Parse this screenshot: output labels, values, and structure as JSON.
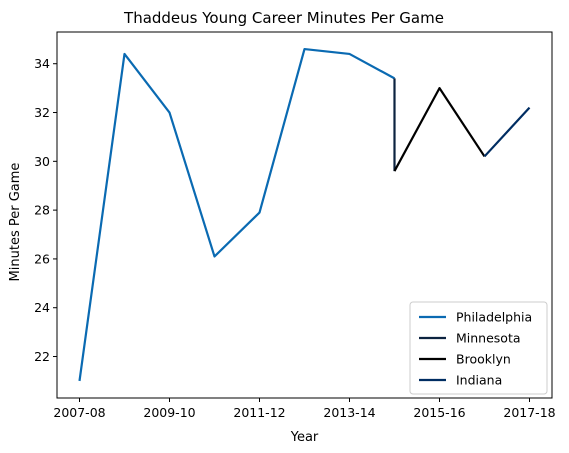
{
  "chart_data": {
    "type": "line",
    "title": "Thaddeus Young Career Minutes Per Game",
    "xlabel": "Year",
    "ylabel": "Minutes Per Game",
    "x_tick_labels": [
      "2007-08",
      "2009-10",
      "2011-12",
      "2013-14",
      "2015-16",
      "2017-18"
    ],
    "x_tick_positions": [
      0,
      2,
      4,
      6,
      8,
      10
    ],
    "xlim": [
      -0.5,
      10.5
    ],
    "y_ticks": [
      22,
      24,
      26,
      28,
      30,
      32,
      34
    ],
    "ylim": [
      20.3,
      35.3
    ],
    "grid": false,
    "legend_position": "lower right",
    "series": [
      {
        "name": "Philadelphia",
        "color": "#0a6ab2",
        "points": [
          [
            0,
            21.0
          ],
          [
            1,
            34.4
          ],
          [
            2,
            32.0
          ],
          [
            3,
            26.1
          ],
          [
            4,
            27.9
          ],
          [
            5,
            34.6
          ],
          [
            6,
            34.4
          ],
          [
            7,
            33.4
          ]
        ]
      },
      {
        "name": "Minnesota",
        "color": "#0c2340",
        "points": [
          [
            7,
            33.4
          ],
          [
            7,
            29.6
          ]
        ]
      },
      {
        "name": "Brooklyn",
        "color": "#000000",
        "points": [
          [
            7,
            29.6
          ],
          [
            8,
            33.0
          ],
          [
            9,
            30.2
          ]
        ]
      },
      {
        "name": "Indiana",
        "color": "#002d62",
        "points": [
          [
            9,
            30.2
          ],
          [
            10,
            32.2
          ]
        ]
      }
    ]
  }
}
